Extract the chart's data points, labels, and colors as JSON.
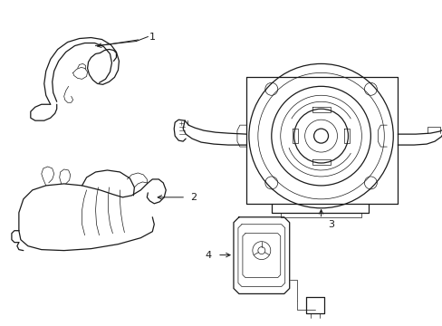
{
  "background_color": "#ffffff",
  "line_color": "#1a1a1a",
  "label_color": "#000000",
  "fig_width": 4.89,
  "fig_height": 3.6,
  "dpi": 100,
  "lw_main": 0.9,
  "lw_thin": 0.5,
  "label_fs": 8
}
